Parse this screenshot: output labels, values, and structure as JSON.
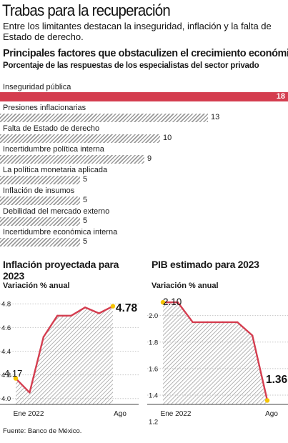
{
  "header": {
    "title": "Trabas para la recuperación",
    "subtitle": "Entre los limitantes destacan la inseguridad, inflación y la falta de Estado de derecho."
  },
  "colors": {
    "accent": "#d43d4f",
    "hatch": "#9a9a9a",
    "marker": "#f5c400"
  },
  "source": "Fuente: Banco de México.",
  "chart_data": [
    {
      "type": "bar",
      "orientation": "horizontal",
      "title": "Principales factores que obstaculizen el crecimiento económico",
      "subtitle": "Porcentaje de las respuestas de los especialistas del sector privado",
      "categories": [
        "Inseguridad pública",
        "Presiones inflacionarias",
        "Falta de Estado de derecho",
        "Incertidumbre política interna",
        "La política monetaria aplicada",
        "Inflación de insumos",
        "Debilidad del mercado externo",
        "Incertidumbre económica interna"
      ],
      "values": [
        18,
        13,
        10,
        9,
        5,
        5,
        5,
        5
      ],
      "highlight": "Inseguridad pública"
    },
    {
      "type": "area",
      "title": "Inflación proyectada para 2023",
      "subtitle": "Variación % anual",
      "x": [
        "Ene 2022",
        "Feb 2022",
        "Mar 2022",
        "Abr 2022",
        "May 2022",
        "Jun 2022",
        "Jul 2022",
        "Ago 2022"
      ],
      "x_tick_labels": [
        "Ene 2022",
        "Ago"
      ],
      "values": [
        4.17,
        4.05,
        4.52,
        4.7,
        4.7,
        4.77,
        4.72,
        4.78
      ],
      "labeled_points": [
        "4.17",
        "4.78"
      ],
      "ylim": [
        3.95,
        4.88
      ],
      "yticks": [
        "4.0",
        "4.2",
        "4.4",
        "4.6",
        "4.8"
      ],
      "grid": true
    },
    {
      "type": "area",
      "title": "PIB estimado para 2023",
      "subtitle": "Variación % anual",
      "x": [
        "Ene 2022",
        "Feb 2022",
        "Mar 2022",
        "Abr 2022",
        "May 2022",
        "Jun 2022",
        "Jul 2022",
        "Ago 2022"
      ],
      "x_tick_labels": [
        "Ene 2022",
        "Ago"
      ],
      "values": [
        2.1,
        2.1,
        1.95,
        1.95,
        1.95,
        1.95,
        1.85,
        1.36
      ],
      "labeled_points": [
        "2.10",
        "1.36"
      ],
      "ylim": [
        1.33,
        2.16
      ],
      "yticks": [
        "1.2",
        "1.4",
        "1.6",
        "1.8",
        "2.0"
      ],
      "grid": true
    }
  ]
}
